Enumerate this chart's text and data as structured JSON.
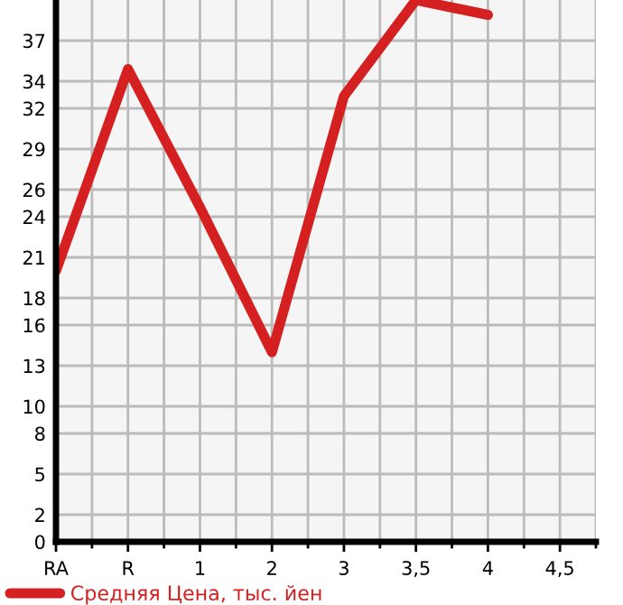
{
  "chart_data": {
    "type": "line",
    "categories": [
      "RA",
      "R",
      "1",
      "2",
      "3",
      "3,5",
      "4",
      "4,5"
    ],
    "series": [
      {
        "name": "Средняя Цена, тыс. йен",
        "color": "#d42020",
        "values": [
          20,
          34.9,
          24.7,
          14,
          32.9,
          40,
          38.9,
          null
        ]
      }
    ],
    "ylim": [
      0,
      40
    ],
    "yticks": [
      0,
      2,
      5,
      8,
      10,
      13,
      16,
      18,
      21,
      24,
      26,
      29,
      32,
      34,
      37
    ],
    "grid": true,
    "legend": "bottom",
    "marker": "none",
    "line_style": "solid"
  }
}
